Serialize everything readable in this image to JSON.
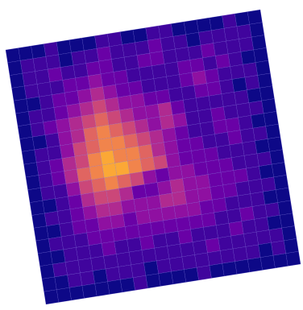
{
  "chart_data": {
    "type": "heatmap",
    "colormap": "plasma",
    "zlim": [
      0,
      10
    ],
    "values": [
      [
        0,
        0,
        0,
        1,
        0,
        0,
        0,
        1,
        1,
        0,
        0,
        1,
        1,
        0,
        0,
        0,
        0,
        1,
        0,
        0
      ],
      [
        0,
        1,
        1,
        1,
        0,
        1,
        1,
        2,
        1,
        1,
        1,
        2,
        1,
        1,
        0,
        1,
        1,
        1,
        1,
        0
      ],
      [
        0,
        1,
        1,
        2,
        1,
        1,
        2,
        2,
        1,
        1,
        2,
        2,
        1,
        1,
        1,
        2,
        1,
        1,
        1,
        0
      ],
      [
        0,
        1,
        1,
        1,
        2,
        2,
        3,
        2,
        2,
        1,
        1,
        1,
        1,
        2,
        2,
        1,
        2,
        1,
        0,
        0
      ],
      [
        0,
        0,
        1,
        2,
        2,
        3,
        4,
        3,
        2,
        2,
        1,
        1,
        1,
        2,
        3,
        2,
        1,
        1,
        1,
        0
      ],
      [
        0,
        1,
        1,
        2,
        3,
        4,
        5,
        4,
        3,
        3,
        2,
        2,
        1,
        1,
        2,
        2,
        1,
        0,
        1,
        0
      ],
      [
        0,
        1,
        2,
        3,
        4,
        5,
        6,
        5,
        4,
        3,
        3,
        4,
        2,
        1,
        1,
        1,
        1,
        1,
        0,
        0
      ],
      [
        0,
        0,
        1,
        3,
        4,
        6,
        7,
        6,
        5,
        4,
        3,
        4,
        3,
        1,
        1,
        2,
        1,
        1,
        1,
        0
      ],
      [
        0,
        1,
        1,
        3,
        5,
        6,
        7,
        7,
        6,
        5,
        4,
        3,
        2,
        1,
        1,
        2,
        2,
        1,
        0,
        0
      ],
      [
        0,
        1,
        2,
        4,
        5,
        7,
        8,
        7,
        7,
        6,
        4,
        3,
        2,
        2,
        1,
        1,
        2,
        1,
        1,
        0
      ],
      [
        0,
        1,
        2,
        4,
        6,
        7,
        8,
        8,
        7,
        6,
        5,
        3,
        2,
        2,
        2,
        1,
        1,
        1,
        0,
        0
      ],
      [
        0,
        1,
        1,
        3,
        5,
        6,
        7,
        6,
        5,
        3,
        2,
        3,
        3,
        2,
        2,
        2,
        1,
        1,
        1,
        0
      ],
      [
        0,
        0,
        1,
        2,
        4,
        5,
        5,
        4,
        2,
        2,
        3,
        4,
        3,
        3,
        2,
        2,
        2,
        1,
        0,
        0
      ],
      [
        0,
        1,
        1,
        2,
        3,
        4,
        4,
        3,
        3,
        3,
        4,
        4,
        3,
        3,
        2,
        2,
        1,
        1,
        1,
        0
      ],
      [
        0,
        0,
        1,
        2,
        2,
        3,
        3,
        2,
        3,
        3,
        3,
        3,
        3,
        2,
        2,
        1,
        1,
        1,
        0,
        0
      ],
      [
        0,
        1,
        1,
        1,
        2,
        2,
        2,
        2,
        2,
        2,
        2,
        2,
        2,
        2,
        1,
        1,
        2,
        1,
        1,
        0
      ],
      [
        0,
        0,
        1,
        1,
        1,
        2,
        1,
        1,
        2,
        1,
        1,
        2,
        1,
        1,
        1,
        2,
        1,
        1,
        0,
        0
      ],
      [
        0,
        1,
        1,
        1,
        1,
        1,
        1,
        1,
        1,
        1,
        1,
        1,
        1,
        2,
        1,
        1,
        1,
        1,
        1,
        0
      ],
      [
        0,
        0,
        1,
        1,
        0,
        1,
        1,
        1,
        0,
        1,
        1,
        1,
        1,
        1,
        1,
        1,
        1,
        0,
        1,
        0
      ],
      [
        0,
        0,
        0,
        0,
        0,
        0,
        0,
        1,
        0,
        0,
        0,
        0,
        1,
        0,
        0,
        0,
        0,
        0,
        0,
        0
      ]
    ]
  }
}
